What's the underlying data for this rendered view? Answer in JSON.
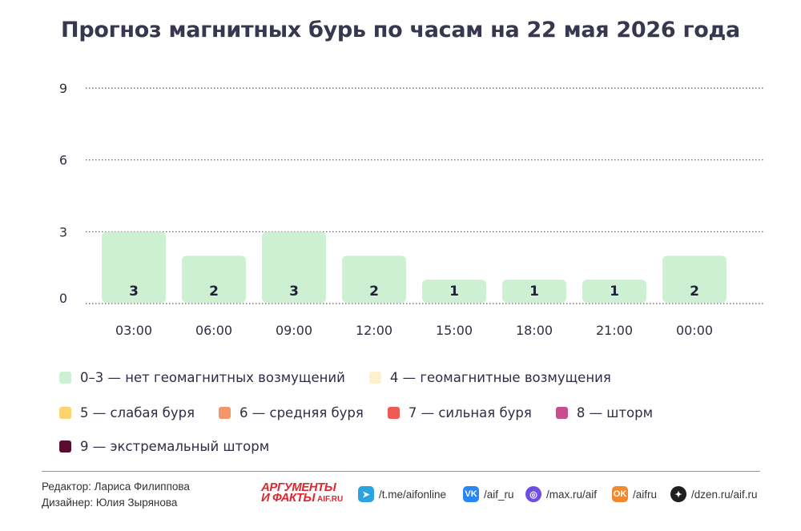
{
  "title": "Прогноз магнитных бурь по часам на 22 мая 2026 года",
  "chart_data": {
    "type": "bar",
    "categories": [
      "03:00",
      "06:00",
      "09:00",
      "12:00",
      "15:00",
      "18:00",
      "21:00",
      "00:00"
    ],
    "values": [
      3,
      2,
      3,
      2,
      1,
      1,
      1,
      2
    ],
    "ylim": [
      0,
      9
    ],
    "yticks": [
      "0",
      "3",
      "6",
      "9"
    ],
    "grid": true,
    "bar_color": "#cdf0d3",
    "data_labels": [
      "3",
      "2",
      "3",
      "2",
      "1",
      "1",
      "1",
      "2"
    ]
  },
  "legend": [
    [
      {
        "label": "0–3 — нет геомагнитных возмущений",
        "color": "#cdf0d3"
      },
      {
        "label": "4 — геомагнитные возмущения",
        "color": "#fdf0cc"
      }
    ],
    [
      {
        "label": "5 — слабая буря",
        "color": "#fbd46f"
      },
      {
        "label": "6 — средняя буря",
        "color": "#f5956a"
      },
      {
        "label": "7 — сильная буря",
        "color": "#ee5a55"
      },
      {
        "label": "8 — шторм",
        "color": "#c84f8d"
      }
    ],
    [
      {
        "label": "9 — экстремальный шторм",
        "color": "#5a0c2f"
      }
    ]
  ],
  "credits": {
    "editor": "Редактор: Лариса Филиппова",
    "designer": "Дизайнер: Юлия Зырянова"
  },
  "logo": {
    "line1": "АРГУМЕНТЫ",
    "line2": "И ФАКТЫ",
    "line3": "AIF.RU"
  },
  "social": [
    {
      "icon": "telegram-icon",
      "text": "/t.me/aifonline",
      "color": "#2aa3df",
      "glyph": "➤"
    },
    {
      "icon": "vk-icon",
      "text": "/aif_ru",
      "color": "#2787f5",
      "glyph": "VK"
    },
    {
      "icon": "max-icon",
      "text": "/max.ru/aif",
      "color": "#6f4de0",
      "glyph": "◎"
    },
    {
      "icon": "odnoklassniki-icon",
      "text": "/aifru",
      "color": "#f1892e",
      "glyph": "OK"
    },
    {
      "icon": "dzen-icon",
      "text": "/dzen.ru/aif.ru",
      "color": "#1e1e1e",
      "glyph": "✦"
    }
  ]
}
